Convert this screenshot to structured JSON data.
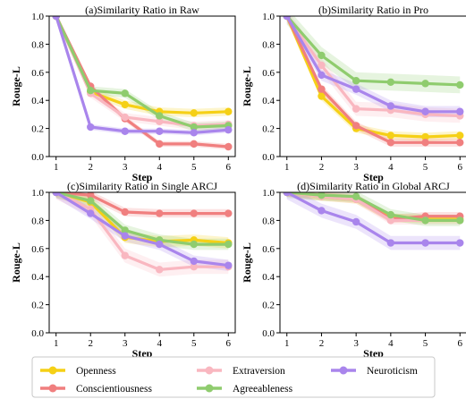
{
  "series_meta": [
    {
      "name": "Openness",
      "color": "#f5d016"
    },
    {
      "name": "Conscientiousness",
      "color": "#f07f7f"
    },
    {
      "name": "Extraversion",
      "color": "#f9b7c0"
    },
    {
      "name": "Agreeableness",
      "color": "#8fcc6e"
    },
    {
      "name": "Neuroticism",
      "color": "#a985ec"
    }
  ],
  "chart_data": [
    {
      "type": "line",
      "title": "(a)Similarity Ratio in Raw",
      "xlabel": "Step",
      "ylabel": "Rouge-L",
      "x": [
        1,
        2,
        3,
        4,
        5,
        6
      ],
      "ylim": [
        0.0,
        1.0
      ],
      "yticks": [
        "0.0",
        "0.2",
        "0.4",
        "0.6",
        "0.8",
        "1.0"
      ],
      "xticks": [
        "1",
        "2",
        "3",
        "4",
        "5",
        "6"
      ],
      "series": [
        {
          "name": "Openness",
          "values": [
            1.0,
            0.46,
            0.37,
            0.32,
            0.31,
            0.32
          ],
          "band": 0.03
        },
        {
          "name": "Conscientiousness",
          "values": [
            1.0,
            0.5,
            0.27,
            0.09,
            0.09,
            0.07
          ],
          "band": 0.02
        },
        {
          "name": "Extraversion",
          "values": [
            1.0,
            0.45,
            0.28,
            0.25,
            0.22,
            0.23
          ],
          "band": 0.03
        },
        {
          "name": "Agreeableness",
          "values": [
            1.0,
            0.47,
            0.45,
            0.29,
            0.21,
            0.22
          ],
          "band": 0.03
        },
        {
          "name": "Neuroticism",
          "values": [
            1.0,
            0.21,
            0.18,
            0.18,
            0.17,
            0.19
          ],
          "band": 0.02
        }
      ]
    },
    {
      "type": "line",
      "title": "(b)Similarity Ratio in Pro",
      "xlabel": "Step",
      "ylabel": "Rouge-L",
      "x": [
        1,
        2,
        3,
        4,
        5,
        6
      ],
      "ylim": [
        0.0,
        1.0
      ],
      "yticks": [
        "0.0",
        "0.2",
        "0.4",
        "0.6",
        "0.8",
        "1.0"
      ],
      "xticks": [
        "1",
        "2",
        "3",
        "4",
        "5",
        "6"
      ],
      "series": [
        {
          "name": "Openness",
          "values": [
            1.0,
            0.43,
            0.2,
            0.15,
            0.14,
            0.15
          ],
          "band": 0.03
        },
        {
          "name": "Conscientiousness",
          "values": [
            1.0,
            0.48,
            0.22,
            0.1,
            0.1,
            0.1
          ],
          "band": 0.03
        },
        {
          "name": "Extraversion",
          "values": [
            1.0,
            0.65,
            0.34,
            0.33,
            0.3,
            0.29
          ],
          "band": 0.05
        },
        {
          "name": "Agreeableness",
          "values": [
            1.0,
            0.72,
            0.54,
            0.53,
            0.52,
            0.51
          ],
          "band": 0.06
        },
        {
          "name": "Neuroticism",
          "values": [
            1.0,
            0.58,
            0.48,
            0.36,
            0.32,
            0.32
          ],
          "band": 0.04
        }
      ]
    },
    {
      "type": "line",
      "title": "(c)Similarity Ratio in Single ARCJ",
      "xlabel": "Step",
      "ylabel": "Rouge-L",
      "x": [
        1,
        2,
        3,
        4,
        5,
        6
      ],
      "ylim": [
        0.0,
        1.0
      ],
      "yticks": [
        "0.0",
        "0.2",
        "0.4",
        "0.6",
        "0.8",
        "1.0"
      ],
      "xticks": [
        "1",
        "2",
        "3",
        "4",
        "5",
        "6"
      ],
      "series": [
        {
          "name": "Openness",
          "values": [
            1.0,
            0.93,
            0.68,
            0.65,
            0.66,
            0.64
          ],
          "band": 0.04
        },
        {
          "name": "Conscientiousness",
          "values": [
            1.0,
            0.98,
            0.86,
            0.85,
            0.85,
            0.85
          ],
          "band": 0.03
        },
        {
          "name": "Extraversion",
          "values": [
            1.0,
            0.88,
            0.55,
            0.45,
            0.47,
            0.47
          ],
          "band": 0.05
        },
        {
          "name": "Agreeableness",
          "values": [
            1.0,
            0.94,
            0.73,
            0.66,
            0.63,
            0.63
          ],
          "band": 0.04
        },
        {
          "name": "Neuroticism",
          "values": [
            1.0,
            0.85,
            0.69,
            0.63,
            0.51,
            0.48
          ],
          "band": 0.04
        }
      ]
    },
    {
      "type": "line",
      "title": "(d)Similarity Ratio in Global ARCJ",
      "xlabel": "Step",
      "ylabel": "Rouge-L",
      "x": [
        1,
        2,
        3,
        4,
        5,
        6
      ],
      "ylim": [
        0.0,
        1.0
      ],
      "yticks": [
        "0.0",
        "0.2",
        "0.4",
        "0.6",
        "0.8",
        "1.0"
      ],
      "xticks": [
        "1",
        "2",
        "3",
        "4",
        "5",
        "6"
      ],
      "series": [
        {
          "name": "Openness",
          "values": [
            1.0,
            0.97,
            0.95,
            0.82,
            0.81,
            0.81
          ],
          "band": 0.03
        },
        {
          "name": "Conscientiousness",
          "values": [
            1.0,
            0.98,
            0.96,
            0.81,
            0.83,
            0.83
          ],
          "band": 0.03
        },
        {
          "name": "Extraversion",
          "values": [
            1.0,
            0.97,
            0.95,
            0.8,
            0.8,
            0.8
          ],
          "band": 0.03
        },
        {
          "name": "Agreeableness",
          "values": [
            1.0,
            0.98,
            0.97,
            0.84,
            0.8,
            0.8
          ],
          "band": 0.04
        },
        {
          "name": "Neuroticism",
          "values": [
            1.0,
            0.87,
            0.79,
            0.64,
            0.64,
            0.64
          ],
          "band": 0.05
        }
      ]
    }
  ],
  "legend": {
    "placement": "bottom-center",
    "order": [
      "Openness",
      "Extraversion",
      "Neuroticism",
      "Conscientiousness",
      "Agreeableness"
    ]
  }
}
